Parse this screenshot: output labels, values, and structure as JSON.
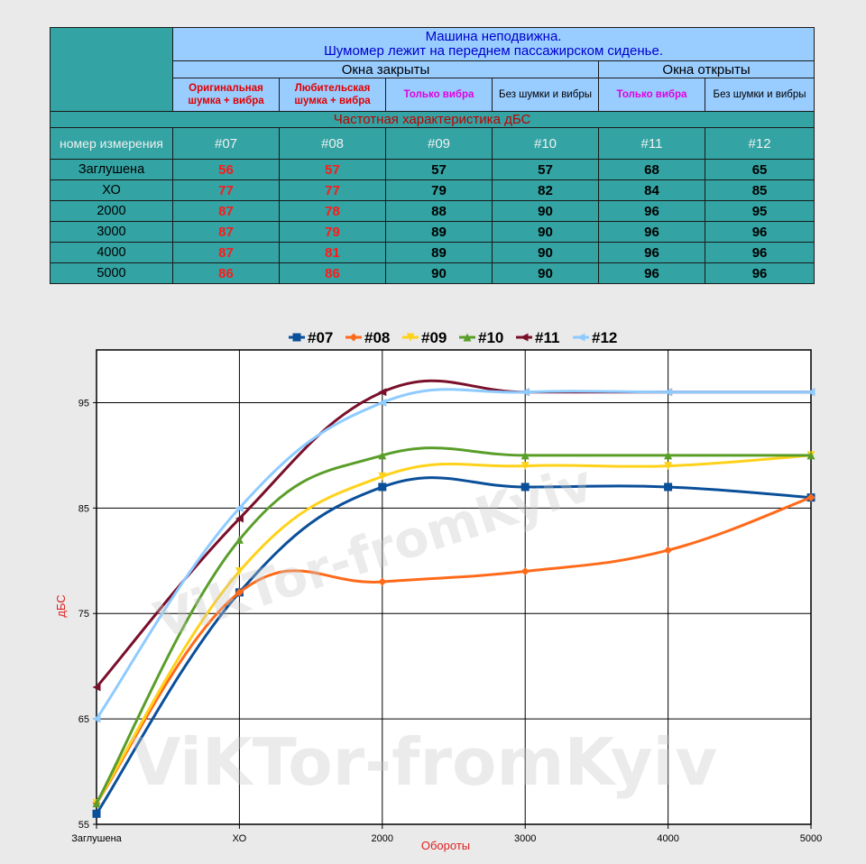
{
  "table": {
    "title_line1": "Машина неподвижна.",
    "title_line2": "Шумомер лежит на переднем пассажирском сиденье.",
    "group_closed": "Окна закрыты",
    "group_open": "Окна открыты",
    "col_headers": [
      "Оригинальная шумка + вибра",
      "Любительская шумка + вибра",
      "Только вибра",
      "Без шумки и вибры",
      "Только вибра",
      "Без шумки и вибры"
    ],
    "subtitle": "Частотная характеристика дБС",
    "num_label": "номер измерения",
    "num_ids": [
      "#07",
      "#08",
      "#09",
      "#10",
      "#11",
      "#12"
    ],
    "rows": [
      {
        "label": "Заглушена",
        "values": [
          "56",
          "57",
          "57",
          "57",
          "68",
          "65"
        ]
      },
      {
        "label": "ХО",
        "values": [
          "77",
          "77",
          "79",
          "82",
          "84",
          "85"
        ]
      },
      {
        "label": "2000",
        "values": [
          "87",
          "78",
          "88",
          "90",
          "96",
          "95"
        ]
      },
      {
        "label": "3000",
        "values": [
          "87",
          "79",
          "89",
          "90",
          "96",
          "96"
        ]
      },
      {
        "label": "4000",
        "values": [
          "87",
          "81",
          "89",
          "90",
          "96",
          "96"
        ]
      },
      {
        "label": "5000",
        "values": [
          "86",
          "86",
          "90",
          "90",
          "96",
          "96"
        ]
      }
    ]
  },
  "watermark": "ViKTor-fromKyiv",
  "chart_data": {
    "type": "line",
    "title": "",
    "xlabel": "Обороты",
    "ylabel": "дБС",
    "categories": [
      "Заглушена",
      "ХО",
      "2000",
      "3000",
      "4000",
      "5000"
    ],
    "y_ticks": [
      "55",
      "65",
      "75",
      "85",
      "95"
    ],
    "ylim": [
      55,
      100
    ],
    "grid": true,
    "legend_position": "top",
    "series": [
      {
        "name": "#07",
        "color": "#0a4f9a",
        "marker": "square",
        "values": [
          56,
          77,
          87,
          87,
          87,
          86
        ]
      },
      {
        "name": "#08",
        "color": "#ff6a1a",
        "marker": "diamond",
        "values": [
          57,
          77,
          78,
          79,
          81,
          86
        ]
      },
      {
        "name": "#09",
        "color": "#ffd21a",
        "marker": "triangle-down",
        "values": [
          57,
          79,
          88,
          89,
          89,
          90
        ]
      },
      {
        "name": "#10",
        "color": "#5a9e2a",
        "marker": "triangle",
        "values": [
          57,
          82,
          90,
          90,
          90,
          90
        ]
      },
      {
        "name": "#11",
        "color": "#7a0f2a",
        "marker": "triangle-left",
        "values": [
          68,
          84,
          96,
          96,
          96,
          96
        ]
      },
      {
        "name": "#12",
        "color": "#8ecbff",
        "marker": "triangle-left",
        "values": [
          65,
          85,
          95,
          96,
          96,
          96
        ]
      }
    ]
  }
}
